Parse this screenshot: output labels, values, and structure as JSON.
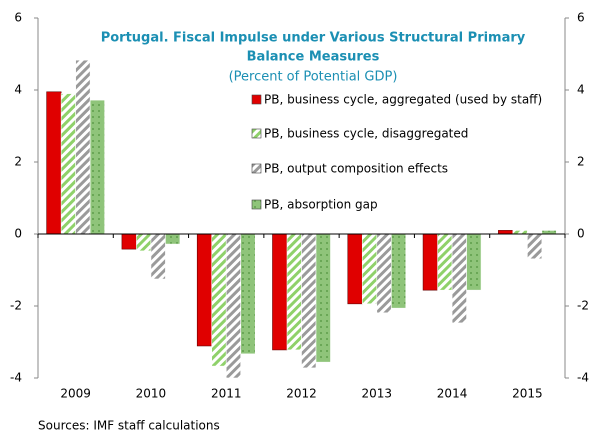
{
  "chart_data": {
    "type": "bar",
    "title": [
      "Portugal. Fiscal Impulse under Various Structural Primary",
      "Balance Measures"
    ],
    "subtitle": "(Percent of Potential GDP)",
    "note": "Sources: IMF staff calculations",
    "categories": [
      "2009",
      "2010",
      "2011",
      "2012",
      "2013",
      "2014",
      "2015"
    ],
    "series": [
      {
        "name": "PB, business cycle, aggregated (used by staff)",
        "color": "#e00000",
        "fill_style": "solid",
        "values": [
          3.95,
          -0.42,
          -3.11,
          -3.22,
          -1.94,
          -1.56,
          0.1
        ]
      },
      {
        "name": "PB, business cycle, disaggregated",
        "color": "#8fd16a",
        "fill_style": "hatch",
        "values": [
          3.9,
          -0.47,
          -3.67,
          -3.22,
          -1.94,
          -1.56,
          0.1
        ]
      },
      {
        "name": "PB, output composition effects",
        "color": "#9a9a9a",
        "fill_style": "hatch",
        "values": [
          4.83,
          -1.25,
          -4.0,
          -3.72,
          -2.19,
          -2.47,
          -0.69
        ]
      },
      {
        "name": "PB, absorption gap",
        "color": "#8fc47a",
        "fill_style": "dots",
        "values": [
          3.72,
          -0.28,
          -3.33,
          -3.56,
          -2.06,
          -1.56,
          0.1
        ]
      }
    ],
    "ylim": [
      -4,
      6
    ],
    "yticks": [
      -4,
      -2,
      0,
      2,
      4,
      6
    ],
    "grid": false
  }
}
